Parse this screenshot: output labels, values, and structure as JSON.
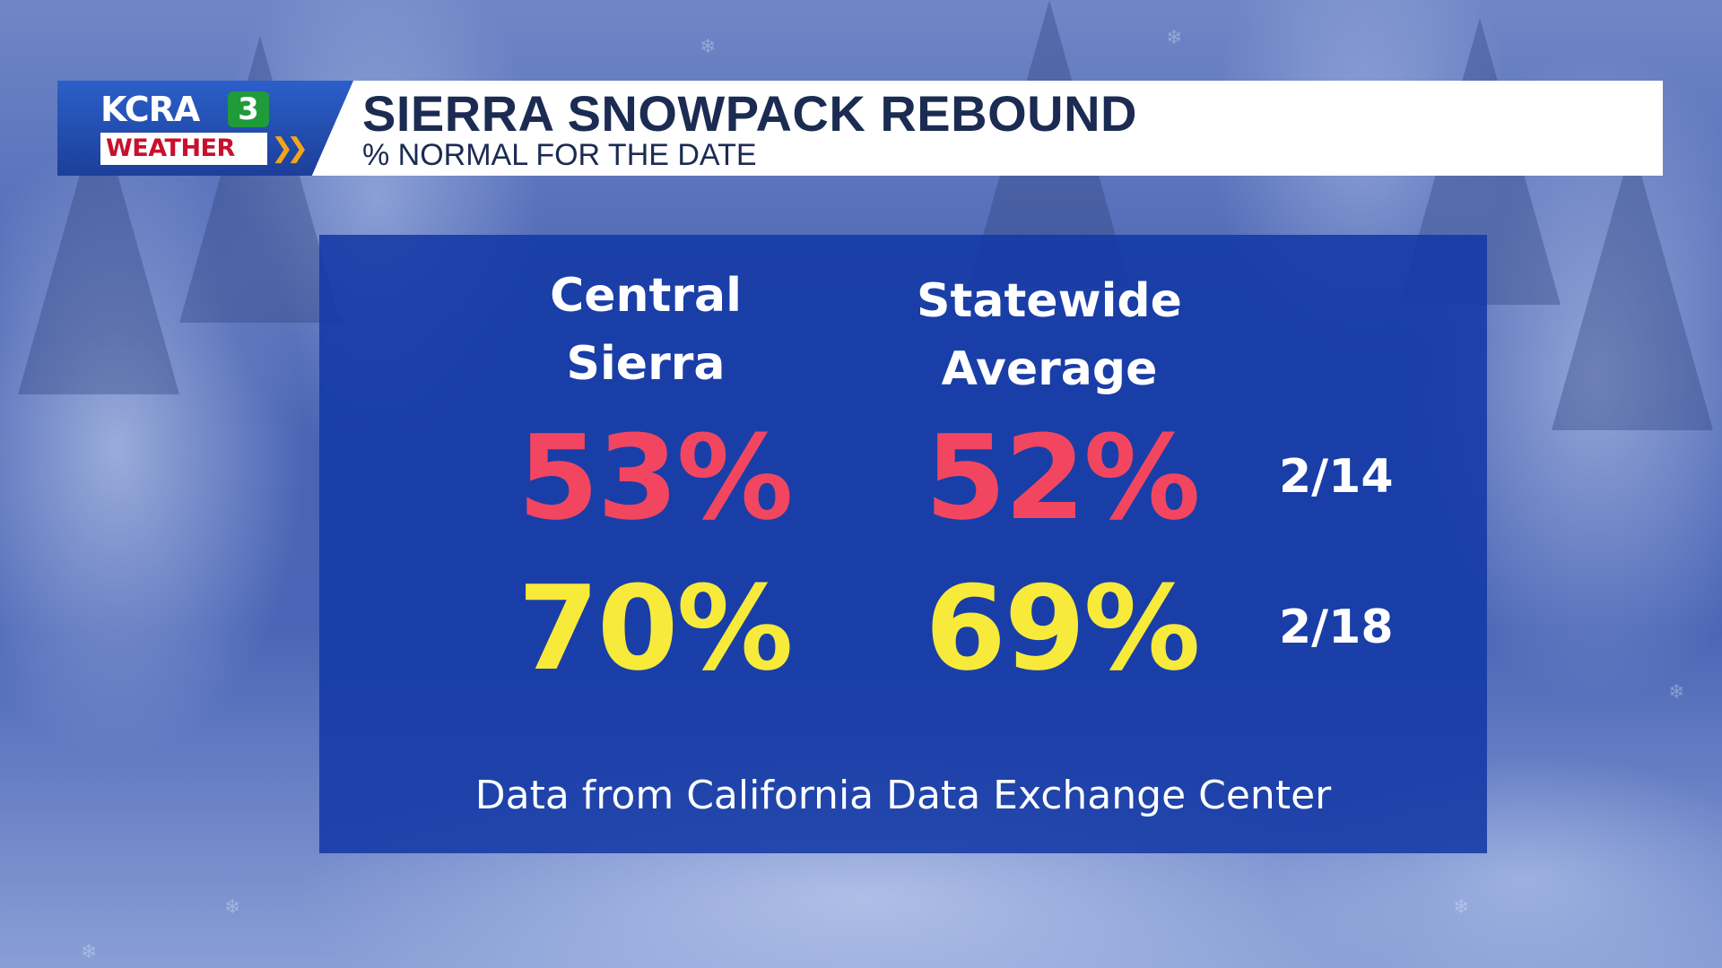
{
  "header": {
    "logo": {
      "station": "KCRA",
      "channel": "3",
      "weather_label": "WEATHER",
      "chevrons": "❯❯"
    },
    "title": "SIERRA SNOWPACK REBOUND",
    "subtitle": "% NORMAL FOR THE DATE"
  },
  "table": {
    "columns": [
      {
        "line1": "Central",
        "line2": "Sierra"
      },
      {
        "line1": "Statewide",
        "line2": "Average"
      }
    ],
    "rows": [
      {
        "date": "2/14",
        "values": [
          "53%",
          "52%"
        ],
        "color": "#f24660"
      },
      {
        "date": "2/18",
        "values": [
          "70%",
          "69%"
        ],
        "color": "#f7ea3a"
      }
    ]
  },
  "source": "Data from California Data Exchange Center",
  "colors": {
    "panel": "#1339a5",
    "accent_red": "#f24660",
    "accent_yellow": "#f7ea3a",
    "title_text": "#1b2b52"
  }
}
